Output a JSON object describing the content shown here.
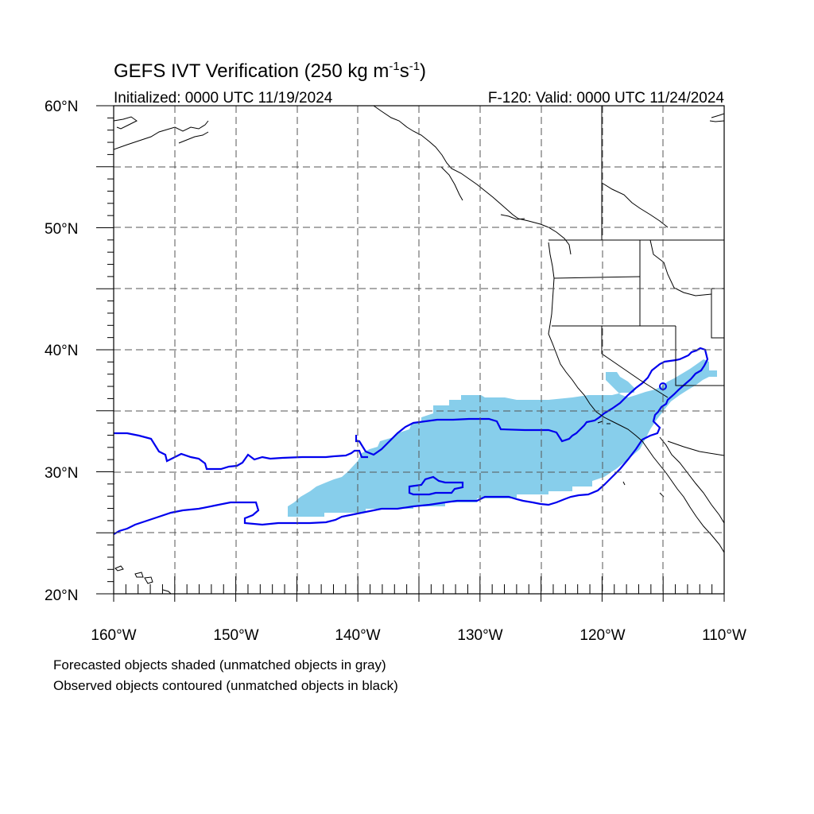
{
  "title": {
    "main": "GEFS IVT Verification (250 kg m",
    "sup1": "-1",
    "mid": "s",
    "sup2": "-1",
    "end": ")"
  },
  "subtitle": {
    "left": "Initialized: 0000 UTC 11/19/2024",
    "right": "F-120: Valid: 0000 UTC 11/24/2024"
  },
  "axes": {
    "lat_labels": [
      "60°N",
      "50°N",
      "40°N",
      "30°N",
      "20°N"
    ],
    "lon_labels": [
      "160°W",
      "150°W",
      "140°W",
      "130°W",
      "120°W",
      "110°W"
    ],
    "lat_range": [
      20,
      60
    ],
    "lon_range": [
      -160,
      -110
    ],
    "grid": "dashed every 5 degrees"
  },
  "legend": {
    "line1": "Forecasted objects shaded (unmatched objects in gray)",
    "line2": "Observed objects contoured (unmatched objects in black)"
  },
  "colors": {
    "forecast_fill": "#87CEEB",
    "observed_contour": "#0000EE",
    "coastline": "#000000",
    "grid": "#555555"
  }
}
